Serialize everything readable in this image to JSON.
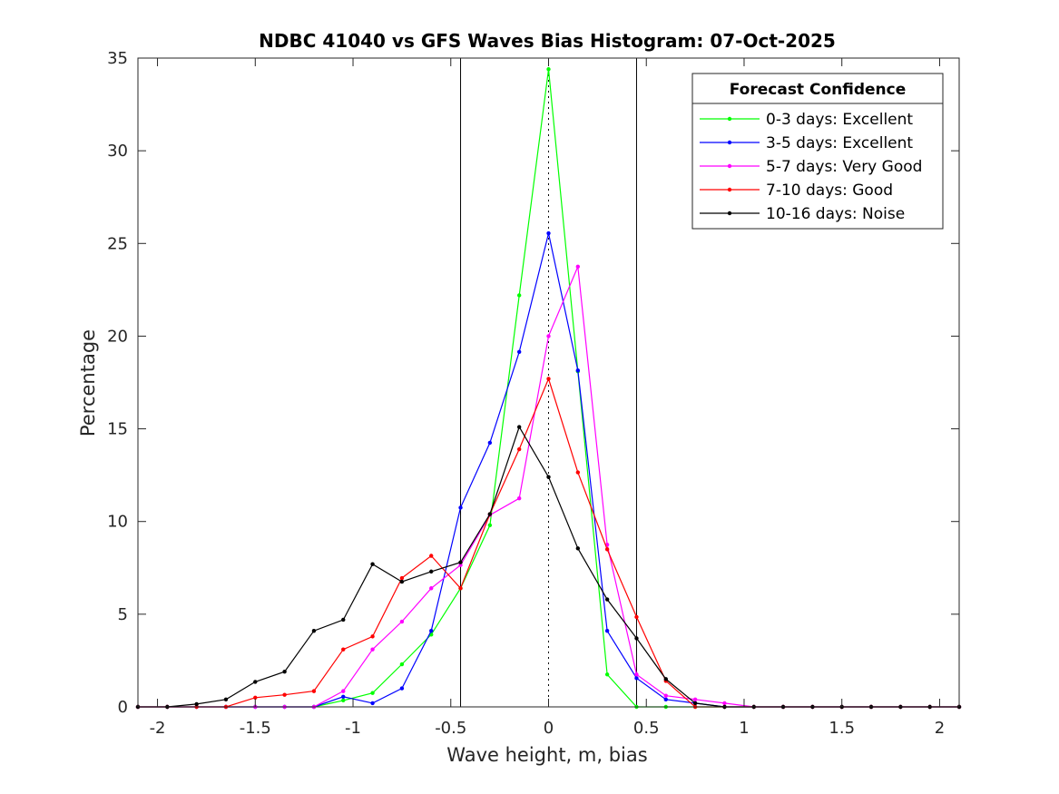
{
  "chart_data": {
    "type": "line",
    "title": "NDBC 41040 vs GFS Waves Bias Histogram: 07-Oct-2025",
    "xlabel": "Wave height, m, bias",
    "ylabel": "Percentage",
    "xlim": [
      -2.1,
      2.1
    ],
    "ylim": [
      0,
      35
    ],
    "xticks": [
      -2,
      -1.5,
      -1,
      -0.5,
      0,
      0.5,
      1,
      1.5,
      2
    ],
    "xtick_labels": [
      "-2",
      "-1.5",
      "-1",
      "-0.5",
      "0",
      "0.5",
      "1",
      "1.5",
      "2"
    ],
    "yticks": [
      0,
      5,
      10,
      15,
      20,
      25,
      30,
      35
    ],
    "ytick_labels": [
      "0",
      "5",
      "10",
      "15",
      "20",
      "25",
      "30",
      "35"
    ],
    "vertical_lines": [
      -0.45,
      0.45
    ],
    "zero_line": 0,
    "legend": {
      "title": "Forecast Confidence",
      "location": "top-right"
    },
    "x": [
      -2.1,
      -1.95,
      -1.8,
      -1.65,
      -1.5,
      -1.35,
      -1.2,
      -1.05,
      -0.9,
      -0.75,
      -0.6,
      -0.45,
      -0.3,
      -0.15,
      0,
      0.15,
      0.3,
      0.45,
      0.6,
      0.75,
      0.9,
      1.05,
      1.2,
      1.35,
      1.5,
      1.65,
      1.8,
      1.95,
      2.1
    ],
    "series": [
      {
        "name": "0-3 days: Excellent",
        "color": "#00ff00",
        "values": [
          0,
          0,
          0,
          0,
          0,
          0,
          0,
          0.35,
          0.75,
          2.3,
          3.9,
          6.4,
          9.8,
          22.2,
          34.4,
          18.1,
          1.75,
          0,
          0,
          0,
          0,
          0,
          0,
          0,
          0,
          0,
          0,
          0,
          0
        ]
      },
      {
        "name": "3-5 days: Excellent",
        "color": "#0000ff",
        "values": [
          0,
          0,
          0,
          0,
          0,
          0,
          0,
          0.55,
          0.2,
          1.0,
          4.1,
          10.75,
          14.25,
          19.15,
          25.55,
          18.15,
          4.1,
          1.55,
          0.4,
          0.2,
          0,
          0,
          0,
          0,
          0,
          0,
          0,
          0,
          0
        ]
      },
      {
        "name": "5-7 days: Very Good",
        "color": "#ff00ff",
        "values": [
          0,
          0,
          0,
          0,
          0,
          0,
          0,
          0.85,
          3.1,
          4.6,
          6.4,
          7.65,
          10.35,
          11.25,
          20.0,
          23.75,
          8.75,
          1.75,
          0.6,
          0.4,
          0.2,
          0,
          0,
          0,
          0,
          0,
          0,
          0,
          0
        ]
      },
      {
        "name": "7-10 days: Good",
        "color": "#ff0000",
        "values": [
          0,
          0,
          0,
          0,
          0.5,
          0.65,
          0.85,
          3.1,
          3.8,
          6.95,
          8.15,
          6.4,
          10.4,
          13.9,
          17.7,
          12.65,
          8.5,
          4.85,
          1.4,
          0,
          0,
          0,
          0,
          0,
          0,
          0,
          0,
          0,
          0
        ]
      },
      {
        "name": "10-16 days: Noise",
        "color": "#000000",
        "values": [
          0,
          0,
          0.15,
          0.4,
          1.35,
          1.9,
          4.1,
          4.7,
          7.7,
          6.75,
          7.3,
          7.8,
          10.4,
          15.1,
          12.4,
          8.55,
          5.8,
          3.7,
          1.5,
          0.2,
          0,
          0,
          0,
          0,
          0,
          0,
          0,
          0,
          0
        ]
      }
    ]
  }
}
